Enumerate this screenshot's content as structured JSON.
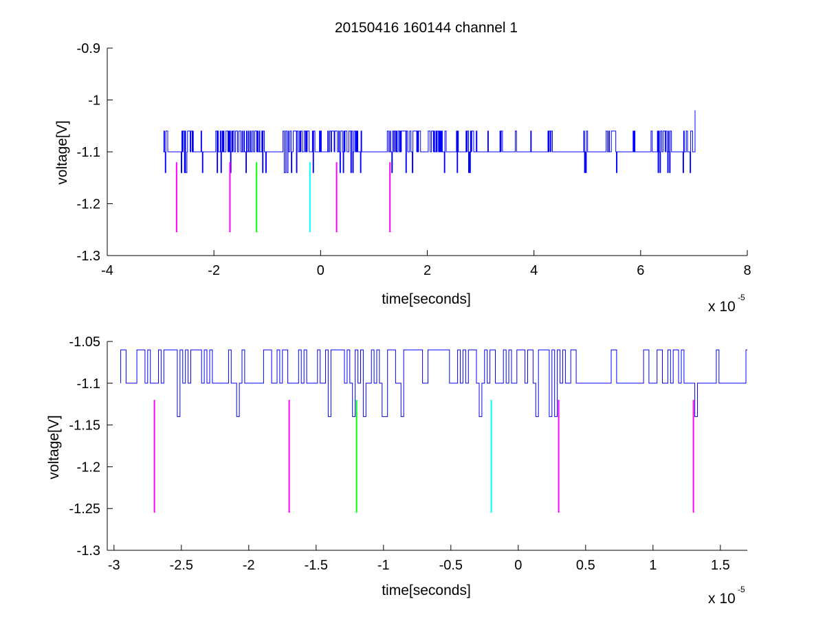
{
  "chart_data": [
    {
      "type": "line",
      "title": "20150416 160144 channel 1",
      "xlabel": "time[seconds]",
      "ylabel": "voltage[V]",
      "x_multiplier_prefix": "x 10",
      "x_multiplier_exponent": "-5",
      "xlim": [
        -4,
        8
      ],
      "ylim": [
        -1.3,
        -0.9
      ],
      "xticks": [
        -4,
        -2,
        0,
        2,
        4,
        6,
        8
      ],
      "xtick_labels": [
        "-4",
        "-2",
        "0",
        "2",
        "4",
        "6",
        "8"
      ],
      "yticks": [
        -1.3,
        -1.2,
        -1.1,
        -1,
        -0.9
      ],
      "ytick_labels": [
        "-1.3",
        "-1.2",
        "-1.1",
        "-1",
        "-0.9"
      ],
      "grid": false,
      "colors": {
        "signal": "#0000ff",
        "magenta": "#ff00ff",
        "green": "#00ff00",
        "cyan": "#00ffff"
      },
      "signal": {
        "x_start": -2.95,
        "x_end": 7.02,
        "levels": [
          -1.06,
          -1.1,
          -1.14
        ],
        "baseline": -1.1,
        "final_spike": -1.02
      },
      "markers": [
        {
          "x": -2.7,
          "y_top": -1.12,
          "y_bottom": -1.255,
          "color": "magenta"
        },
        {
          "x": -1.7,
          "y_top": -1.12,
          "y_bottom": -1.255,
          "color": "magenta"
        },
        {
          "x": -1.2,
          "y_top": -1.12,
          "y_bottom": -1.255,
          "color": "green"
        },
        {
          "x": -0.2,
          "y_top": -1.12,
          "y_bottom": -1.255,
          "color": "cyan"
        },
        {
          "x": 0.3,
          "y_top": -1.12,
          "y_bottom": -1.255,
          "color": "magenta"
        },
        {
          "x": 1.3,
          "y_top": -1.12,
          "y_bottom": -1.255,
          "color": "magenta"
        }
      ]
    },
    {
      "type": "line",
      "title": "",
      "xlabel": "time[seconds]",
      "ylabel": "voltage[V]",
      "x_multiplier_prefix": "x 10",
      "x_multiplier_exponent": "-5",
      "xlim": [
        -3.05,
        1.7
      ],
      "ylim": [
        -1.3,
        -1.05
      ],
      "xticks": [
        -3,
        -2.5,
        -2,
        -1.5,
        -1,
        -0.5,
        0,
        0.5,
        1,
        1.5
      ],
      "xtick_labels": [
        "-3",
        "-2.5",
        "-2",
        "-1.5",
        "-1",
        "-0.5",
        "0",
        "0.5",
        "1",
        "1.5"
      ],
      "yticks": [
        -1.3,
        -1.25,
        -1.2,
        -1.15,
        -1.1,
        -1.05
      ],
      "ytick_labels": [
        "-1.3",
        "-1.25",
        "-1.2",
        "-1.15",
        "-1.1",
        "-1.05"
      ],
      "grid": false,
      "colors": {
        "signal": "#0000ff",
        "magenta": "#ff00ff",
        "green": "#00ff00",
        "cyan": "#00ffff"
      },
      "signal": {
        "x_start": -2.95,
        "x_end": 1.7,
        "levels": [
          -1.06,
          -1.1,
          -1.14
        ],
        "baseline": -1.1
      },
      "markers": [
        {
          "x": -2.7,
          "y_top": -1.12,
          "y_bottom": -1.255,
          "color": "magenta"
        },
        {
          "x": -1.7,
          "y_top": -1.12,
          "y_bottom": -1.255,
          "color": "magenta"
        },
        {
          "x": -1.2,
          "y_top": -1.12,
          "y_bottom": -1.255,
          "color": "green"
        },
        {
          "x": -0.2,
          "y_top": -1.12,
          "y_bottom": -1.255,
          "color": "cyan"
        },
        {
          "x": 0.3,
          "y_top": -1.12,
          "y_bottom": -1.255,
          "color": "magenta"
        },
        {
          "x": 1.3,
          "y_top": -1.12,
          "y_bottom": -1.255,
          "color": "magenta"
        }
      ]
    }
  ]
}
